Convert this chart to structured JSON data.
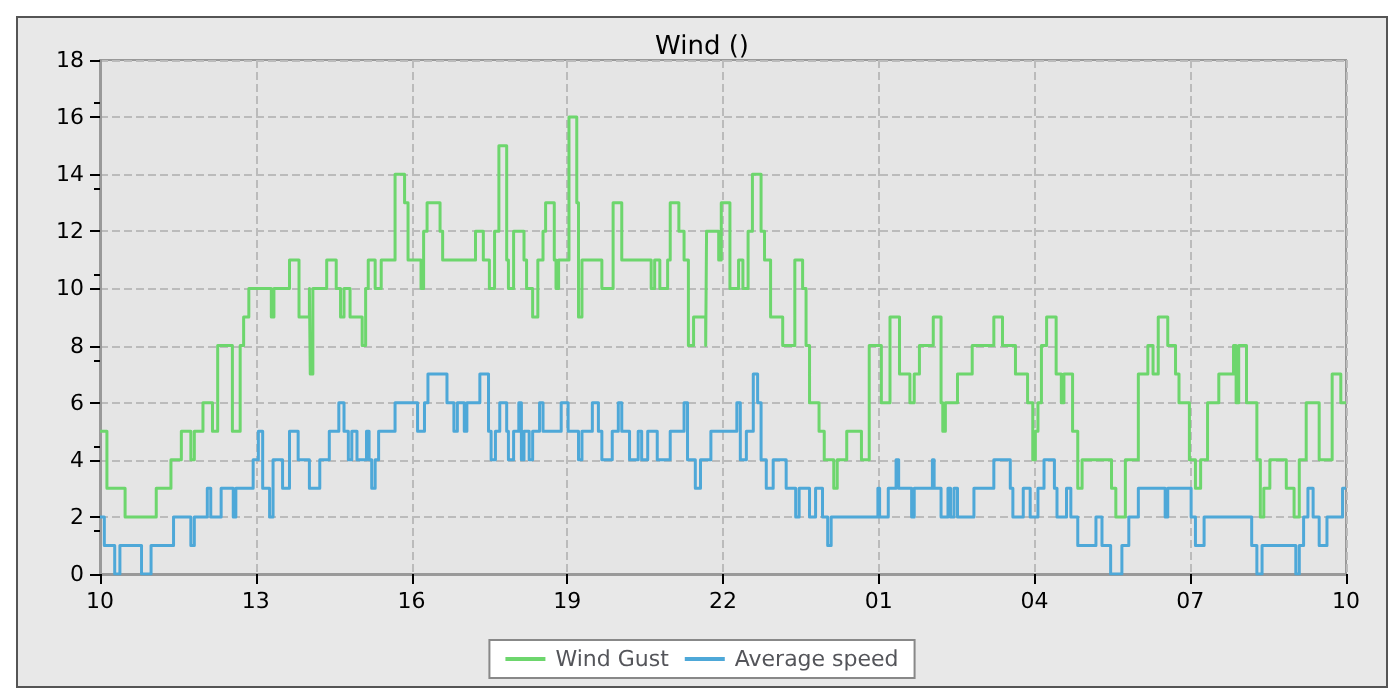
{
  "chart_data": {
    "type": "step",
    "title": "Wind ()",
    "xlim": [
      "--01-01T10:00",
      "--01-02T10:00"
    ],
    "xticks": [
      {
        "value": "--01-01T10:00",
        "label": "10"
      },
      {
        "value": "--01-01T13:00",
        "label": "13"
      },
      {
        "value": "--01-01T16:00",
        "label": "16"
      },
      {
        "value": "--01-01T19:00",
        "label": "19"
      },
      {
        "value": "--01-01T22:00",
        "label": "22"
      },
      {
        "value": "--01-02T01:00",
        "label": "01"
      },
      {
        "value": "--01-02T04:00",
        "label": "04"
      },
      {
        "value": "--01-02T07:00",
        "label": "07"
      },
      {
        "value": "--01-02T10:00",
        "label": "10"
      }
    ],
    "ylim": [
      0,
      18
    ],
    "yticks": [
      0,
      2,
      4,
      6,
      8,
      10,
      12,
      14,
      16,
      18
    ],
    "grid": true,
    "legend": "bottom",
    "line_style": "solid",
    "marker": "none",
    "series": [
      {
        "name": "Wind Gust",
        "color": "#6dd66d",
        "x": [
          "--01-01T10:00",
          "--01-01T10:08",
          "--01-01T10:29",
          "--01-01T11:05",
          "--01-01T11:22",
          "--01-01T11:34",
          "--01-01T11:45",
          "--01-01T11:49",
          "--01-01T11:59",
          "--01-01T12:10",
          "--01-01T12:16",
          "--01-01T12:33",
          "--01-01T12:42",
          "--01-01T12:46",
          "--01-01T12:52",
          "--01-01T13:18",
          "--01-01T13:21",
          "--01-01T13:39",
          "--01-01T13:50",
          "--01-01T14:02",
          "--01-01T14:03",
          "--01-01T14:06",
          "--01-01T14:22",
          "--01-01T14:33",
          "--01-01T14:38",
          "--01-01T14:42",
          "--01-01T14:49",
          "--01-01T15:03",
          "--01-01T15:07",
          "--01-01T15:10",
          "--01-01T15:18",
          "--01-01T15:25",
          "--01-01T15:41",
          "--01-01T15:52",
          "--01-01T15:56",
          "--01-01T16:11",
          "--01-01T16:14",
          "--01-01T16:18",
          "--01-01T16:33",
          "--01-01T16:36",
          "--01-01T17:14",
          "--01-01T17:23",
          "--01-01T17:30",
          "--01-01T17:36",
          "--01-01T17:41",
          "--01-01T17:50",
          "--01-01T17:52",
          "--01-01T17:58",
          "--01-01T18:10",
          "--01-01T18:13",
          "--01-01T18:20",
          "--01-01T18:26",
          "--01-01T18:32",
          "--01-01T18:35",
          "--01-01T18:45",
          "--01-01T18:47",
          "--01-01T18:50",
          "--01-01T19:02",
          "--01-01T19:11",
          "--01-01T19:13",
          "--01-01T19:17",
          "--01-01T19:40",
          "--01-01T19:53",
          "--01-01T20:03",
          "--01-01T20:37",
          "--01-01T20:41",
          "--01-01T20:47",
          "--01-01T20:56",
          "--01-01T20:59",
          "--01-01T21:09",
          "--01-01T21:15",
          "--01-01T21:20",
          "--01-01T21:26",
          "--01-01T21:40",
          "--01-01T21:41",
          "--01-01T21:55",
          "--01-01T21:58",
          "--01-01T22:08",
          "--01-01T22:18",
          "--01-01T22:23",
          "--01-01T22:29",
          "--01-01T22:34",
          "--01-01T22:44",
          "--01-01T22:48",
          "--01-01T22:55",
          "--01-01T23:09",
          "--01-01T23:23",
          "--01-01T23:32",
          "--01-01T23:36",
          "--01-01T23:40",
          "--01-01T23:51",
          "--01-01T23:57",
          "--01-02T00:08",
          "--01-02T00:12",
          "--01-02T00:23",
          "--01-02T00:40",
          "--01-02T00:49",
          "--01-02T01:03",
          "--01-02T01:13",
          "--01-02T01:24",
          "--01-02T01:36",
          "--01-02T01:41",
          "--01-02T01:47",
          "--01-02T02:03",
          "--01-02T02:12",
          "--01-02T02:14",
          "--01-02T02:17",
          "--01-02T02:31",
          "--01-02T02:48",
          "--01-02T03:13",
          "--01-02T03:23",
          "--01-02T03:38",
          "--01-02T03:43",
          "--01-02T03:52",
          "--01-02T03:58",
          "--01-02T04:01",
          "--01-02T04:04",
          "--01-02T04:08",
          "--01-02T04:14",
          "--01-02T04:25",
          "--01-02T04:31",
          "--01-02T04:34",
          "--01-02T04:44",
          "--01-02T04:50",
          "--01-02T04:55",
          "--01-02T05:29",
          "--01-02T05:34",
          "--01-02T05:45",
          "--01-02T06:00",
          "--01-02T06:11",
          "--01-02T06:17",
          "--01-02T06:23",
          "--01-02T06:34",
          "--01-02T06:43",
          "--01-02T06:47",
          "--01-02T06:59",
          "--01-02T07:06",
          "--01-02T07:12",
          "--01-02T07:20",
          "--01-02T07:33",
          "--01-02T07:50",
          "--01-02T07:53",
          "--01-02T07:56",
          "--01-02T08:05",
          "--01-02T08:17",
          "--01-02T08:21",
          "--01-02T08:25",
          "--01-02T08:32",
          "--01-02T08:51",
          "--01-02T09:00",
          "--01-02T09:06",
          "--01-02T09:14",
          "--01-02T09:29",
          "--01-02T09:44",
          "--01-02T09:54",
          "--01-02T10:00"
        ],
        "values": [
          5,
          3,
          2,
          3,
          4,
          5,
          4,
          5,
          6,
          5,
          8,
          5,
          8,
          9,
          10,
          9,
          10,
          11,
          9,
          10,
          7,
          10,
          11,
          10,
          9,
          10,
          9,
          8,
          10,
          11,
          10,
          11,
          14,
          13,
          11,
          10,
          12,
          13,
          12,
          11,
          12,
          11,
          10,
          12,
          15,
          11,
          10,
          12,
          11,
          10,
          9,
          11,
          12,
          13,
          11,
          10,
          11,
          16,
          13,
          9,
          11,
          10,
          13,
          11,
          10,
          11,
          10,
          11,
          13,
          12,
          11,
          8,
          9,
          8,
          12,
          11,
          13,
          10,
          11,
          10,
          12,
          14,
          12,
          11,
          9,
          8,
          11,
          10,
          8,
          6,
          5,
          4,
          3,
          4,
          5,
          4,
          8,
          6,
          9,
          7,
          6,
          7,
          8,
          9,
          6,
          5,
          6,
          7,
          8,
          9,
          8,
          7,
          7,
          6,
          4,
          5,
          6,
          8,
          9,
          7,
          6,
          7,
          5,
          3,
          4,
          3,
          2,
          4,
          7,
          8,
          7,
          9,
          8,
          7,
          6,
          4,
          3,
          4,
          6,
          7,
          8,
          6,
          8,
          6,
          4,
          2,
          3,
          4,
          3,
          2,
          4,
          6,
          4,
          7,
          6,
          6
        ]
      },
      {
        "name": "Average speed",
        "color": "#4ea8d8",
        "x": [
          "--01-01T10:00",
          "--01-01T10:05",
          "--01-01T10:17",
          "--01-01T10:23",
          "--01-01T10:48",
          "--01-01T10:59",
          "--01-01T11:22",
          "--01-01T11:25",
          "--01-01T11:45",
          "--01-01T11:49",
          "--01-01T12:04",
          "--01-01T12:08",
          "--01-01T12:20",
          "--01-01T12:34",
          "--01-01T12:37",
          "--01-01T12:57",
          "--01-01T13:03",
          "--01-01T13:08",
          "--01-01T13:16",
          "--01-01T13:20",
          "--01-01T13:31",
          "--01-01T13:39",
          "--01-01T13:49",
          "--01-01T14:02",
          "--01-01T14:14",
          "--01-01T14:25",
          "--01-01T14:36",
          "--01-01T14:42",
          "--01-01T14:47",
          "--01-01T14:51",
          "--01-01T14:57",
          "--01-01T15:08",
          "--01-01T15:11",
          "--01-01T15:14",
          "--01-01T15:18",
          "--01-01T15:22",
          "--01-01T15:41",
          "--01-01T16:07",
          "--01-01T16:15",
          "--01-01T16:19",
          "--01-01T16:41",
          "--01-01T16:49",
          "--01-01T16:53",
          "--01-01T17:01",
          "--01-01T17:04",
          "--01-01T17:19",
          "--01-01T17:29",
          "--01-01T17:32",
          "--01-01T17:37",
          "--01-01T17:42",
          "--01-01T17:50",
          "--01-01T17:52",
          "--01-01T17:58",
          "--01-01T18:04",
          "--01-01T18:07",
          "--01-01T18:10",
          "--01-01T18:16",
          "--01-01T18:20",
          "--01-01T18:28",
          "--01-01T18:32",
          "--01-01T18:53",
          "--01-01T19:01",
          "--01-01T19:13",
          "--01-01T19:17",
          "--01-01T19:29",
          "--01-01T19:36",
          "--01-01T19:40",
          "--01-01T19:52",
          "--01-01T19:59",
          "--01-01T20:03",
          "--01-01T20:12",
          "--01-01T20:22",
          "--01-01T20:26",
          "--01-01T20:33",
          "--01-01T20:44",
          "--01-01T20:59",
          "--01-01T21:15",
          "--01-01T21:19",
          "--01-01T21:28",
          "--01-01T21:34",
          "--01-01T21:46",
          "--01-01T22:16",
          "--01-01T22:20",
          "--01-01T22:27",
          "--01-01T22:35",
          "--01-01T22:40",
          "--01-01T22:44",
          "--01-01T22:50",
          "--01-01T22:58",
          "--01-01T23:13",
          "--01-01T23:24",
          "--01-01T23:28",
          "--01-01T23:40",
          "--01-01T23:47",
          "--01-01T23:55",
          "--01-02T00:01",
          "--01-02T00:05",
          "--01-02T00:59",
          "--01-02T01:01",
          "--01-02T01:11",
          "--01-02T01:20",
          "--01-02T01:23",
          "--01-02T01:38",
          "--01-02T01:41",
          "--01-02T02:02",
          "--01-02T02:04",
          "--01-02T02:12",
          "--01-02T02:20",
          "--01-02T02:23",
          "--01-02T02:27",
          "--01-02T02:31",
          "--01-02T02:50",
          "--01-02T03:13",
          "--01-02T03:32",
          "--01-02T03:35",
          "--01-02T03:47",
          "--01-02T03:55",
          "--01-02T04:04",
          "--01-02T04:11",
          "--01-02T04:23",
          "--01-02T04:26",
          "--01-02T04:37",
          "--01-02T04:42",
          "--01-02T04:50",
          "--01-02T05:11",
          "--01-02T05:18",
          "--01-02T05:28",
          "--01-02T05:41",
          "--01-02T05:49",
          "--01-02T06:00",
          "--01-02T06:31",
          "--01-02T06:34",
          "--01-02T07:01",
          "--01-02T07:06",
          "--01-02T07:16",
          "--01-02T08:11",
          "--01-02T08:17",
          "--01-02T08:23",
          "--01-02T09:02",
          "--01-02T09:06",
          "--01-02T09:11",
          "--01-02T09:16",
          "--01-02T09:22",
          "--01-02T09:29",
          "--01-02T09:38",
          "--01-02T09:56",
          "--01-02T10:00"
        ],
        "values": [
          2,
          1,
          0,
          1,
          0,
          1,
          1,
          2,
          1,
          2,
          3,
          2,
          3,
          2,
          3,
          4,
          5,
          3,
          2,
          4,
          3,
          5,
          4,
          3,
          4,
          5,
          6,
          5,
          4,
          5,
          4,
          5,
          4,
          3,
          4,
          5,
          6,
          5,
          6,
          7,
          6,
          5,
          6,
          5,
          6,
          7,
          5,
          4,
          5,
          6,
          5,
          4,
          5,
          6,
          4,
          5,
          4,
          5,
          6,
          5,
          6,
          5,
          4,
          5,
          6,
          5,
          4,
          5,
          6,
          5,
          4,
          5,
          4,
          5,
          4,
          5,
          6,
          4,
          3,
          4,
          5,
          6,
          4,
          5,
          7,
          6,
          4,
          3,
          4,
          3,
          2,
          3,
          2,
          3,
          2,
          1,
          2,
          3,
          2,
          3,
          4,
          3,
          2,
          3,
          4,
          3,
          2,
          3,
          2,
          3,
          2,
          3,
          4,
          3,
          2,
          3,
          2,
          3,
          4,
          3,
          2,
          3,
          2,
          1,
          2,
          1,
          0,
          1,
          2,
          3,
          2,
          3,
          2,
          1,
          2,
          1,
          0,
          1,
          0,
          1,
          2,
          3,
          2,
          1,
          2,
          3,
          3
        ]
      }
    ]
  }
}
